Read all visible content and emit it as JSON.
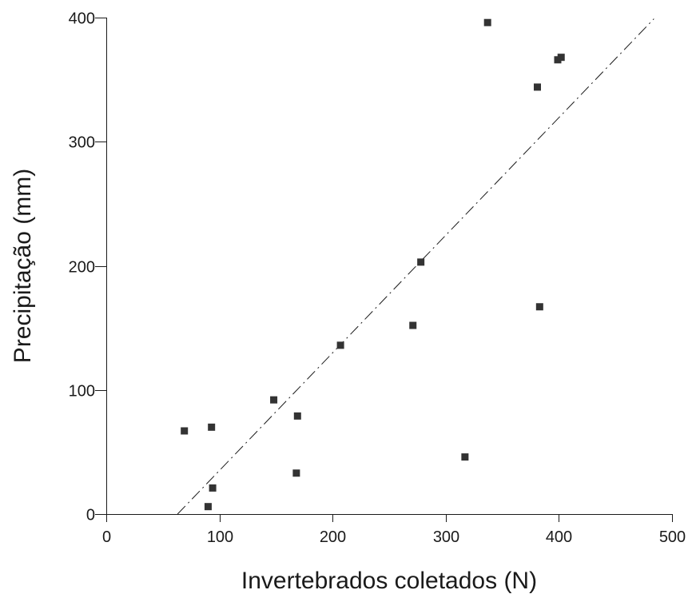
{
  "chart_data": {
    "type": "scatter",
    "title": "",
    "xlabel": "Invertebrados coletados (N)",
    "ylabel": "Precipitação (mm)",
    "xlim": [
      0,
      500
    ],
    "ylim": [
      0,
      400
    ],
    "x_ticks": [
      "0",
      "100",
      "200",
      "300",
      "400",
      "500"
    ],
    "y_ticks": [
      "0",
      "100",
      "200",
      "300",
      "400"
    ],
    "grid": false,
    "legend": "none",
    "marker": "square",
    "marker_color": "#333333",
    "series": [
      {
        "points": [
          {
            "x": 69,
            "y": 67
          },
          {
            "x": 90,
            "y": 6
          },
          {
            "x": 93,
            "y": 70
          },
          {
            "x": 94,
            "y": 21
          },
          {
            "x": 148,
            "y": 92
          },
          {
            "x": 168,
            "y": 33
          },
          {
            "x": 169,
            "y": 79
          },
          {
            "x": 207,
            "y": 136
          },
          {
            "x": 271,
            "y": 152
          },
          {
            "x": 278,
            "y": 203
          },
          {
            "x": 317,
            "y": 46
          },
          {
            "x": 337,
            "y": 396
          },
          {
            "x": 381,
            "y": 344
          },
          {
            "x": 383,
            "y": 167
          },
          {
            "x": 399,
            "y": 366
          },
          {
            "x": 402,
            "y": 368
          }
        ]
      }
    ],
    "trendline": {
      "style": "dash-dot",
      "x": [
        63,
        484
      ],
      "y": [
        0,
        399
      ]
    }
  }
}
